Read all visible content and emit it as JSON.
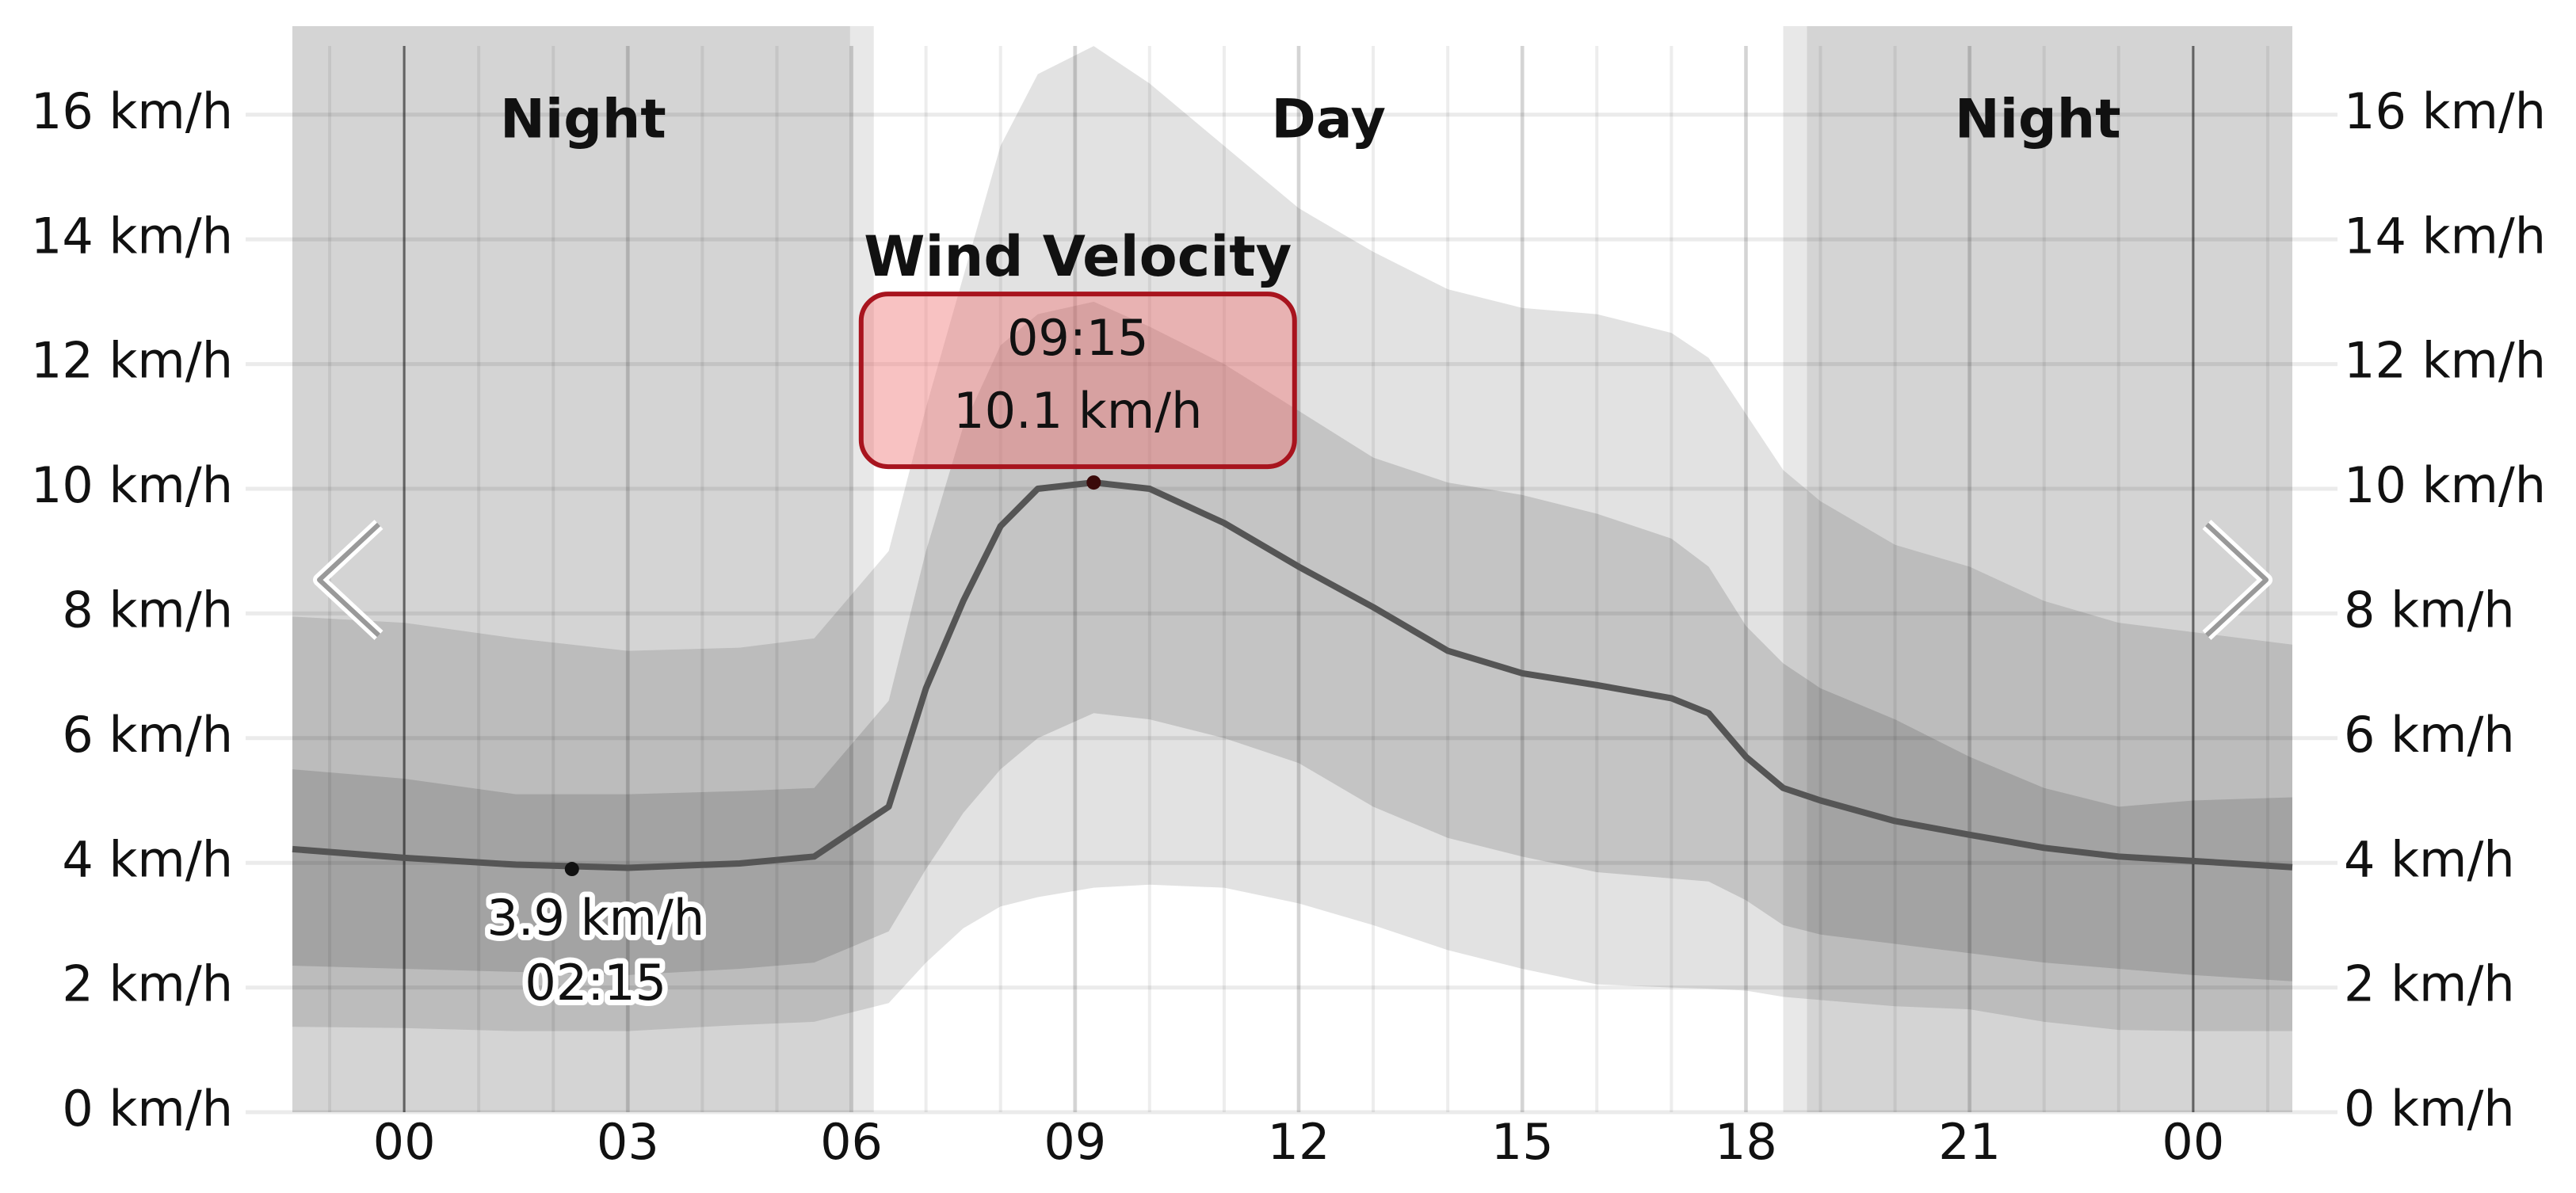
{
  "chart_data": {
    "type": "line",
    "x": [
      -1.5,
      0,
      1.5,
      3,
      4.5,
      5.5,
      6.5,
      7,
      7.5,
      8,
      8.5,
      9.25,
      10,
      11,
      12,
      13,
      14,
      15,
      16,
      17,
      17.5,
      18,
      18.5,
      19,
      20,
      21,
      22,
      23,
      24,
      25.33
    ],
    "values": [
      4.22,
      4.08,
      3.97,
      3.92,
      3.99,
      4.1,
      4.9,
      6.8,
      8.2,
      9.4,
      10.0,
      10.1,
      10.0,
      9.45,
      8.75,
      8.1,
      7.4,
      7.04,
      6.85,
      6.64,
      6.4,
      5.7,
      5.2,
      5.0,
      4.67,
      4.45,
      4.24,
      4.1,
      4.03,
      3.93
    ],
    "color": "#555555",
    "bands": [
      {
        "color": "#e2e2e2",
        "upper": [
          7.95,
          7.85,
          7.6,
          7.4,
          7.45,
          7.6,
          9.0,
          11.3,
          13.4,
          15.5,
          16.65,
          17.1,
          16.5,
          15.5,
          14.5,
          13.8,
          13.2,
          12.9,
          12.8,
          12.5,
          12.1,
          11.2,
          10.3,
          9.8,
          9.1,
          8.75,
          8.2,
          7.85,
          7.7,
          7.5
        ],
        "lower": [
          1.37,
          1.35,
          1.3,
          1.3,
          1.4,
          1.45,
          1.75,
          2.4,
          2.95,
          3.3,
          3.45,
          3.6,
          3.65,
          3.6,
          3.35,
          3.0,
          2.6,
          2.3,
          2.05,
          2.0,
          1.98,
          1.95,
          1.85,
          1.8,
          1.7,
          1.65,
          1.45,
          1.32,
          1.3,
          1.3
        ]
      },
      {
        "color": "#c4c4c4",
        "upper": [
          5.5,
          5.35,
          5.1,
          5.1,
          5.15,
          5.2,
          6.6,
          9.0,
          11.0,
          12.3,
          12.8,
          13.0,
          12.6,
          12.0,
          11.25,
          10.5,
          10.1,
          9.9,
          9.6,
          9.2,
          8.75,
          7.8,
          7.2,
          6.8,
          6.3,
          5.7,
          5.2,
          4.9,
          5.0,
          5.05
        ],
        "lower": [
          2.35,
          2.3,
          2.25,
          2.2,
          2.3,
          2.4,
          2.9,
          3.9,
          4.8,
          5.5,
          6.0,
          6.4,
          6.3,
          6.0,
          5.6,
          4.9,
          4.4,
          4.1,
          3.85,
          3.75,
          3.7,
          3.4,
          3.0,
          2.85,
          2.7,
          2.55,
          2.4,
          2.3,
          2.2,
          2.1
        ]
      }
    ],
    "periods": [
      {
        "label": "Night",
        "start": -1.5,
        "end": 6.3
      },
      {
        "label": "Day",
        "start": 6.3,
        "end": 18.5
      },
      {
        "label": "Night",
        "start": 18.5,
        "end": 25.33
      }
    ],
    "xlim": [
      -1.5,
      25.33
    ],
    "xticks": [
      {
        "value": 0,
        "label": "00"
      },
      {
        "value": 3,
        "label": "03"
      },
      {
        "value": 6,
        "label": "06"
      },
      {
        "value": 9,
        "label": "09"
      },
      12,
      15,
      18,
      21,
      {
        "value": 24,
        "label": "00"
      }
    ],
    "xminorticks": [
      -1,
      0,
      1,
      2,
      3,
      4,
      5,
      6,
      7,
      8,
      9,
      10,
      11,
      12,
      13,
      14,
      15,
      16,
      17,
      18,
      19,
      20,
      21,
      22,
      23,
      24,
      25
    ],
    "ylim": [
      0,
      17.42
    ],
    "yticks": [
      {
        "value": 0,
        "label": "0 km/h"
      },
      {
        "value": 2,
        "label": "2 km/h"
      },
      {
        "value": 4,
        "label": "4 km/h"
      },
      {
        "value": 6,
        "label": "6 km/h"
      },
      {
        "value": 8,
        "label": "8 km/h"
      },
      {
        "value": 10,
        "label": "10 km/h"
      },
      {
        "value": 12,
        "label": "12 km/h"
      },
      {
        "value": 14,
        "label": "14 km/h"
      },
      {
        "value": 16,
        "label": "16 km/h"
      }
    ],
    "grid": true,
    "tooltip": {
      "title": "Wind Velocity",
      "time": "09:15",
      "x": 9.25,
      "value": 10.1,
      "value_label": "10.1 km/h"
    },
    "minimum": {
      "x": 2.25,
      "value": 3.9,
      "value_label": "3.9 km/h",
      "time": "02:15"
    }
  }
}
